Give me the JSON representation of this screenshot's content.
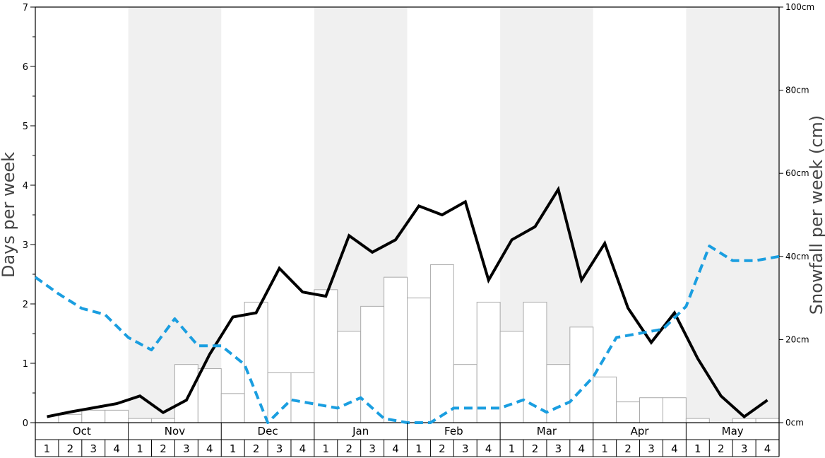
{
  "chart_data": {
    "type": "bar+line",
    "y_left": {
      "label": "Days per week",
      "min": 0,
      "max": 7,
      "ticks": [
        0,
        1,
        2,
        3,
        4,
        5,
        6,
        7
      ]
    },
    "y_right": {
      "label": "Snowfall per week (cm)",
      "min": 0,
      "max": 100,
      "ticks": [
        0,
        20,
        40,
        60,
        80,
        100
      ],
      "tick_labels": [
        "0cm",
        "20cm",
        "40cm",
        "60cm",
        "80cm",
        "100cm"
      ]
    },
    "months": [
      "Oct",
      "Nov",
      "Dec",
      "Jan",
      "Feb",
      "Mar",
      "Apr",
      "May"
    ],
    "week_labels": [
      "1",
      "2",
      "3",
      "4"
    ],
    "shaded_months": [
      "Nov",
      "Jan",
      "Mar",
      "May"
    ],
    "colors": {
      "bars": "#ffffff",
      "bar_outline": "#aaaaaa",
      "shade": "#f0f0f0",
      "solid_line": "#000000",
      "dashed_line": "#1a9ee0"
    },
    "series": [
      {
        "kind": "bar",
        "axis": "right",
        "values": [
          0,
          2,
          3,
          3,
          1,
          1,
          14,
          13,
          7,
          29,
          12,
          12,
          32,
          22,
          28,
          35,
          30,
          38,
          14,
          29,
          22,
          29,
          14,
          23,
          11,
          5,
          6,
          6,
          1,
          0,
          1,
          1
        ]
      },
      {
        "kind": "line",
        "style": "solid",
        "axis": "left",
        "values": [
          0.1,
          0.18,
          0.25,
          0.32,
          0.45,
          0.17,
          0.38,
          1.15,
          1.78,
          1.85,
          2.6,
          2.2,
          2.13,
          3.15,
          2.87,
          3.08,
          3.65,
          3.5,
          3.72,
          2.4,
          3.08,
          3.3,
          3.93,
          2.4,
          3.02,
          1.93,
          1.35,
          1.85,
          1.08,
          0.45,
          0.1,
          0.38
        ]
      },
      {
        "kind": "line",
        "style": "dashed",
        "axis": "right",
        "values": [
          35,
          31,
          27.5,
          26,
          20.5,
          17.5,
          25,
          18.5,
          18.5,
          14,
          0,
          5.5,
          4.5,
          3.5,
          6,
          1,
          0,
          0,
          3.5,
          3.5,
          3.5,
          5.5,
          2.5,
          5,
          11,
          20.5,
          21.5,
          22.5,
          28,
          42.5,
          39,
          39,
          40
        ]
      }
    ]
  }
}
